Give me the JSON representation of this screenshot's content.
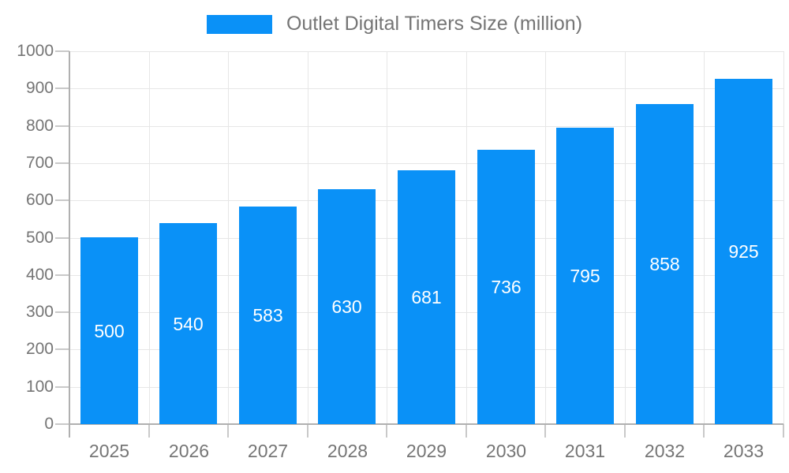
{
  "legend": {
    "label": "Outlet Digital Timers Size (million)"
  },
  "colors": {
    "bar": "#0a91f7",
    "label_text": "#757575",
    "bar_value_text": "#ffffff",
    "gridline": "#e6e6e6",
    "axis_line": "#b0b0b0",
    "tick": "#c9c9c9",
    "background": "#ffffff"
  },
  "chart_data": {
    "type": "bar",
    "title": "Outlet Digital Timers Size (million)",
    "series": [
      {
        "name": "Outlet Digital Timers Size (million)",
        "values": [
          500,
          540,
          583,
          630,
          681,
          736,
          795,
          858,
          925
        ]
      }
    ],
    "categories": [
      "2025",
      "2026",
      "2027",
      "2028",
      "2029",
      "2030",
      "2031",
      "2032",
      "2033"
    ],
    "xlabel": "",
    "ylabel": "",
    "ylim": [
      0,
      1000
    ],
    "y_ticks": [
      0,
      100,
      200,
      300,
      400,
      500,
      600,
      700,
      800,
      900,
      1000
    ],
    "grid": true,
    "legend_position": "top-center",
    "value_labels": "inside-bar-centered"
  }
}
